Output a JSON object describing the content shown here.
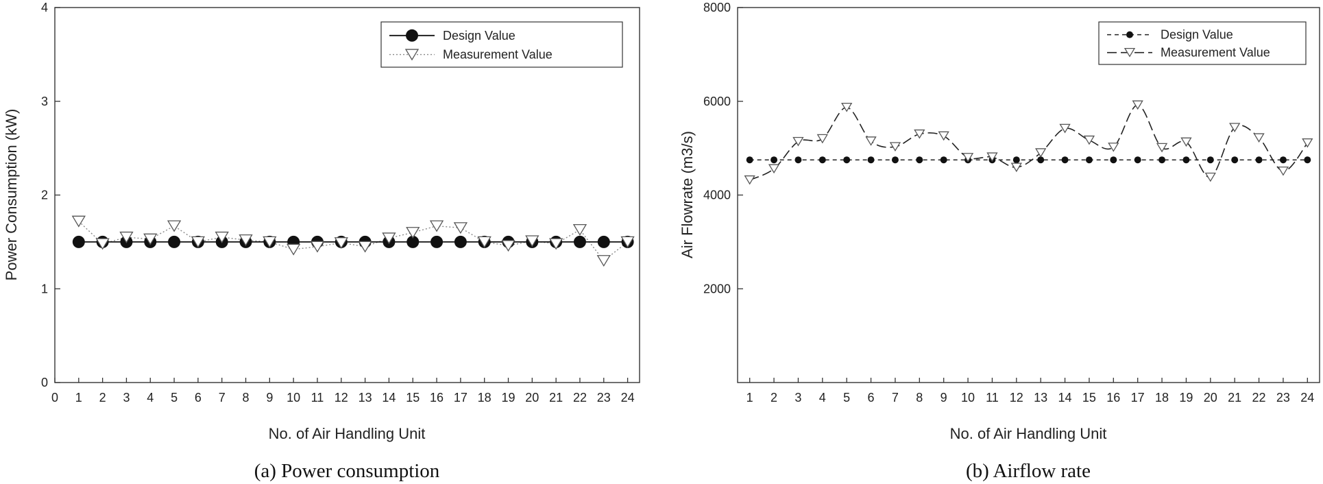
{
  "chart_data": [
    {
      "type": "line",
      "caption": "(a) Power consumption",
      "xlabel": "No. of Air Handling Unit",
      "ylabel": "Power Consumption (kW)",
      "xlim": [
        0,
        24.5
      ],
      "ylim": [
        0,
        4
      ],
      "xticks": [
        0,
        1,
        2,
        3,
        4,
        5,
        6,
        7,
        8,
        9,
        10,
        11,
        12,
        13,
        14,
        15,
        16,
        17,
        18,
        19,
        20,
        21,
        22,
        23,
        24
      ],
      "xtick_labels": [
        "0",
        "1",
        "2",
        "3",
        "4",
        "5",
        "6",
        "7",
        "8",
        "9",
        "10",
        "11",
        "12",
        "13",
        "14",
        "15",
        "16",
        "17",
        "18",
        "19",
        "20",
        "21",
        "22",
        "23",
        "24"
      ],
      "yticks": [
        0,
        1,
        2,
        3,
        4
      ],
      "ytick_labels": [
        "0",
        "1",
        "2",
        "3",
        "4"
      ],
      "x": [
        1,
        2,
        3,
        4,
        5,
        6,
        7,
        8,
        9,
        10,
        11,
        12,
        13,
        14,
        15,
        16,
        17,
        18,
        19,
        20,
        21,
        22,
        23,
        24
      ],
      "series": [
        {
          "name": "Design Value",
          "style": "solid-filled-circle",
          "values": [
            1.5,
            1.5,
            1.5,
            1.5,
            1.5,
            1.5,
            1.5,
            1.5,
            1.5,
            1.5,
            1.5,
            1.5,
            1.5,
            1.5,
            1.5,
            1.5,
            1.5,
            1.5,
            1.5,
            1.5,
            1.5,
            1.5,
            1.5,
            1.5
          ]
        },
        {
          "name": "Measurement Value",
          "style": "dotted-open-triangle",
          "values": [
            1.72,
            1.48,
            1.55,
            1.53,
            1.67,
            1.5,
            1.55,
            1.52,
            1.5,
            1.42,
            1.45,
            1.49,
            1.45,
            1.54,
            1.6,
            1.67,
            1.65,
            1.5,
            1.46,
            1.51,
            1.48,
            1.63,
            1.3,
            1.5
          ]
        }
      ],
      "legend": {
        "position": "top-right"
      }
    },
    {
      "type": "line",
      "caption": "(b) Airflow rate",
      "xlabel": "No. of Air Handling Unit",
      "ylabel": "Air Flowrate (m3/s)",
      "xlim": [
        0.5,
        24.5
      ],
      "ylim": [
        0,
        8000
      ],
      "xticks": [
        1,
        2,
        3,
        4,
        5,
        6,
        7,
        8,
        9,
        10,
        11,
        12,
        13,
        14,
        15,
        16,
        17,
        18,
        19,
        20,
        21,
        22,
        23,
        24
      ],
      "xtick_labels": [
        "1",
        "2",
        "3",
        "4",
        "5",
        "6",
        "7",
        "8",
        "9",
        "10",
        "11",
        "12",
        "13",
        "14",
        "15",
        "16",
        "17",
        "18",
        "19",
        "20",
        "21",
        "22",
        "23",
        "24"
      ],
      "yticks": [
        2000,
        4000,
        6000,
        8000
      ],
      "ytick_labels": [
        "2000",
        "4000",
        "6000",
        "8000"
      ],
      "x": [
        1,
        2,
        3,
        4,
        5,
        6,
        7,
        8,
        9,
        10,
        11,
        12,
        13,
        14,
        15,
        16,
        17,
        18,
        19,
        20,
        21,
        22,
        23,
        24
      ],
      "series": [
        {
          "name": "Design Value",
          "style": "dashed-small-filled-circle",
          "values": [
            4750,
            4750,
            4750,
            4750,
            4750,
            4750,
            4750,
            4750,
            4750,
            4750,
            4750,
            4750,
            4750,
            4750,
            4750,
            4750,
            4750,
            4750,
            4750,
            4750,
            4750,
            4750,
            4750,
            4750
          ]
        },
        {
          "name": "Measurement Value",
          "style": "longdash-open-triangle",
          "values": [
            4320,
            4560,
            5140,
            5200,
            5870,
            5150,
            5030,
            5300,
            5260,
            4800,
            4810,
            4590,
            4900,
            5420,
            5170,
            5020,
            5920,
            5010,
            5130,
            4380,
            5440,
            5220,
            4510,
            5110
          ]
        }
      ],
      "legend": {
        "position": "top-right"
      }
    }
  ]
}
